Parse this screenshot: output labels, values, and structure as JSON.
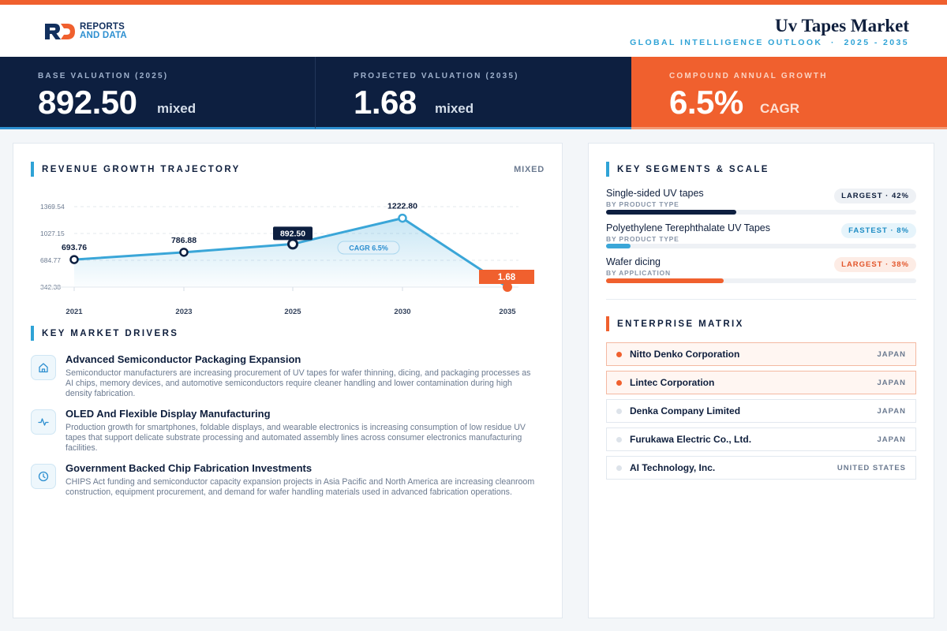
{
  "header": {
    "logo_mark": "RD",
    "logo_line1": "REPORTS",
    "logo_line2": "AND DATA",
    "title": "Uv Tapes Market",
    "subtitle": "GLOBAL INTELLIGENCE OUTLOOK  ·  2025 - 2035"
  },
  "kpis": [
    {
      "label": "BASE VALUATION (2025)",
      "value": "892.50",
      "unit": "mixed"
    },
    {
      "label": "PROJECTED VALUATION (2035)",
      "value": "1.68",
      "unit": "mixed"
    },
    {
      "label": "COMPOUND ANNUAL GROWTH",
      "value": "6.5%",
      "unit": "CAGR"
    }
  ],
  "revenue": {
    "title": "REVENUE GROWTH TRAJECTORY",
    "unit_tag": "MIXED"
  },
  "chart_data": {
    "type": "line",
    "categories": [
      "2021",
      "2023",
      "2025",
      "2030",
      "2035"
    ],
    "values": [
      693.76,
      786.88,
      892.5,
      1222.8,
      1.68
    ],
    "value_labels": [
      "693.76",
      "786.88",
      "892.50",
      "1222.80",
      "1.68"
    ],
    "y_ticks": [
      "1369.54",
      "1027.15",
      "684.77",
      "342.38"
    ],
    "annotation": "CAGR 6.5%",
    "ylim": [
      342.38,
      1369.54
    ],
    "grid": true,
    "colors": {
      "line": "#3aa6d8",
      "highlight": "#0d1f40",
      "projection": "#f0602e"
    }
  },
  "drivers": {
    "title": "KEY MARKET DRIVERS",
    "items": [
      {
        "icon": "building-icon",
        "title": "Advanced Semiconductor Packaging Expansion",
        "text": "Semiconductor manufacturers are increasing procurement of UV tapes for wafer thinning, dicing, and packaging processes as AI chips, memory devices, and automotive semiconductors require cleaner handling and lower contamination during high density fabrication."
      },
      {
        "icon": "pulse-icon",
        "title": "OLED And Flexible Display Manufacturing",
        "text": "Production growth for smartphones, foldable displays, and wearable electronics is increasing consumption of low residue UV tapes that support delicate substrate processing and automated assembly lines across consumer electronics manufacturing facilities."
      },
      {
        "icon": "clock-icon",
        "title": "Government Backed Chip Fabrication Investments",
        "text": "CHIPS Act funding and semiconductor capacity expansion projects in Asia Pacific and North America are increasing cleanroom construction, equipment procurement, and demand for wafer handling materials used in advanced fabrication operations."
      }
    ]
  },
  "segments": {
    "title": "KEY SEGMENTS & SCALE",
    "items": [
      {
        "name": "Single-sided UV tapes",
        "category": "BY PRODUCT TYPE",
        "badge": "LARGEST · 42%",
        "share": 42,
        "color": "#0d1f40"
      },
      {
        "name": "Polyethylene Terephthalate UV Tapes",
        "category": "BY PRODUCT TYPE",
        "badge": "FASTEST · 8%",
        "share": 8,
        "color": "#3aa6d8"
      },
      {
        "name": "Wafer dicing",
        "category": "BY APPLICATION",
        "badge": "LARGEST · 38%",
        "share": 38,
        "color": "#f0602e"
      }
    ]
  },
  "enterprise": {
    "title": "ENTERPRISE MATRIX",
    "items": [
      {
        "name": "Nitto Denko Corporation",
        "country": "JAPAN"
      },
      {
        "name": "Lintec Corporation",
        "country": "JAPAN"
      },
      {
        "name": "Denka Company Limited",
        "country": "JAPAN"
      },
      {
        "name": "Furukawa Electric Co., Ltd.",
        "country": "JAPAN"
      },
      {
        "name": "AI Technology, Inc.",
        "country": "UNITED STATES"
      }
    ]
  }
}
